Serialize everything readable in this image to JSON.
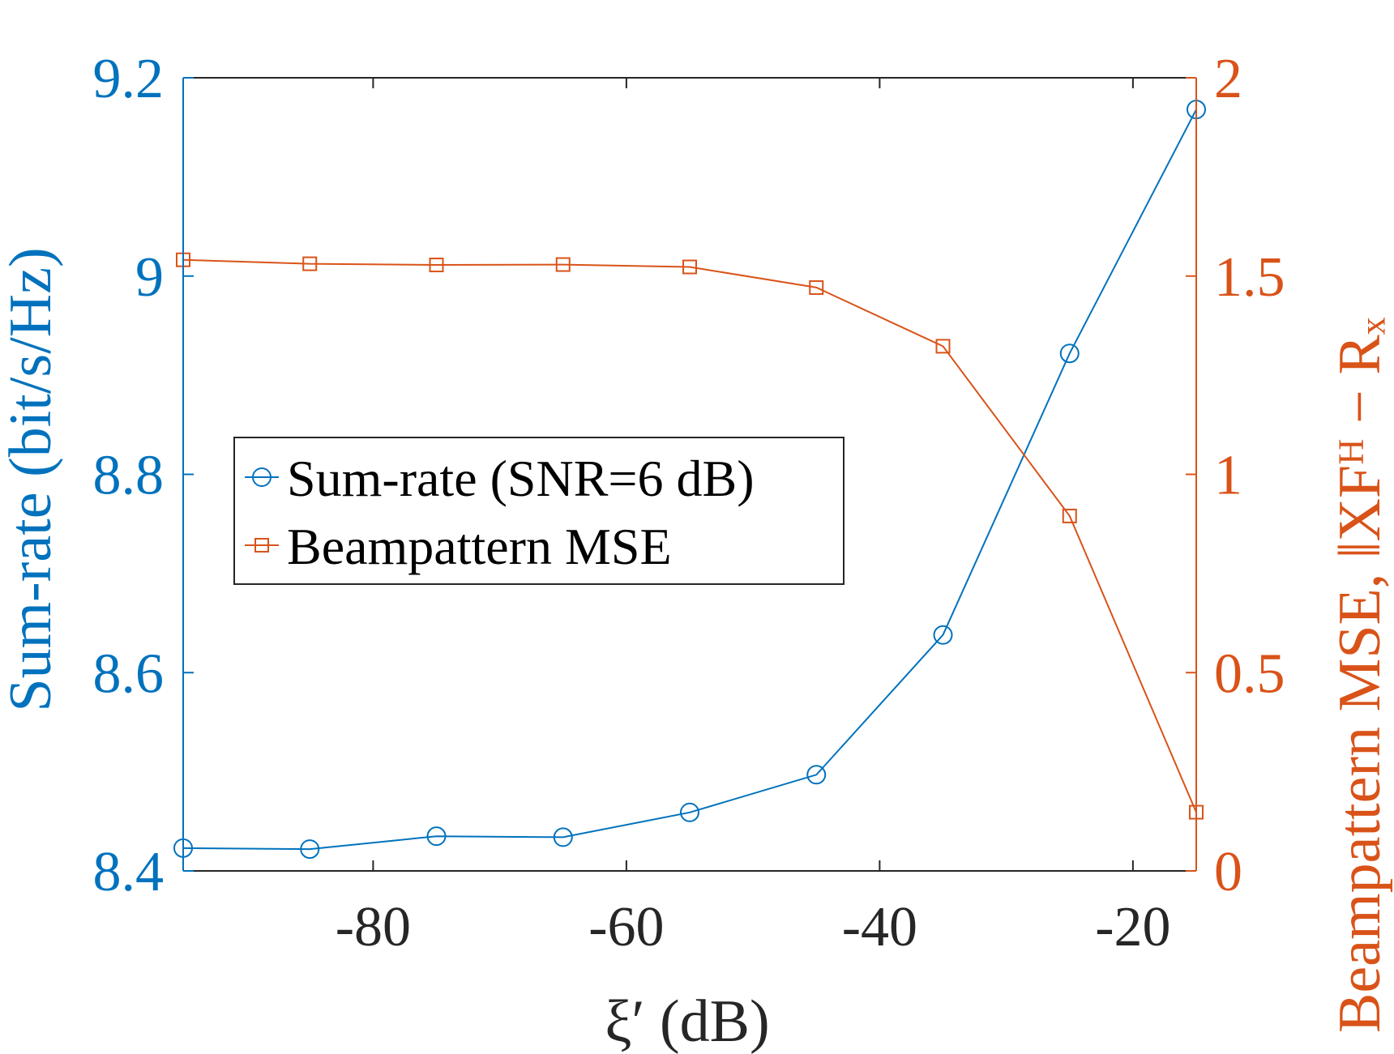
{
  "chart_data": {
    "type": "line",
    "title": "",
    "xlabel": "ξ′ (dB)",
    "ylabel_left": "Sum-rate (bit/s/Hz)",
    "ylabel_right": "Beampattern MSE, ‖XFᴴ − Rₓ",
    "x": [
      -95,
      -85,
      -75,
      -65,
      -55,
      -45,
      -35,
      -25,
      -15
    ],
    "xlim": [
      -95,
      -15
    ],
    "xticks": [
      -80,
      -60,
      -40,
      -20
    ],
    "xtick_labels": [
      "-80",
      "-60",
      "-40",
      "-20"
    ],
    "ylim_left": [
      8.4,
      9.2
    ],
    "yticks_left": [
      8.4,
      8.6,
      8.8,
      9,
      9.2
    ],
    "ytick_labels_left": [
      "8.4",
      "8.6",
      "8.8",
      "9",
      "9.2"
    ],
    "ylim_right": [
      0,
      2
    ],
    "yticks_right": [
      0,
      0.5,
      1,
      1.5,
      2
    ],
    "ytick_labels_right": [
      "0",
      "0.5",
      "1",
      "1.5",
      "2"
    ],
    "series": [
      {
        "name": "Sum-rate (SNR=6 dB)",
        "axis": "left",
        "marker": "circle",
        "color": "#0072BD",
        "values": [
          8.423,
          8.422,
          8.435,
          8.434,
          8.459,
          8.497,
          8.638,
          8.922,
          9.168
        ]
      },
      {
        "name": "Beampattern MSE",
        "axis": "right",
        "marker": "square",
        "color": "#D95319",
        "values": [
          1.541,
          1.531,
          1.528,
          1.529,
          1.523,
          1.471,
          1.323,
          0.895,
          0.148
        ]
      }
    ],
    "legend": {
      "position": "center-left",
      "entries": [
        "Sum-rate (SNR=6 dB)",
        "Beampattern MSE"
      ]
    },
    "grid": false
  }
}
